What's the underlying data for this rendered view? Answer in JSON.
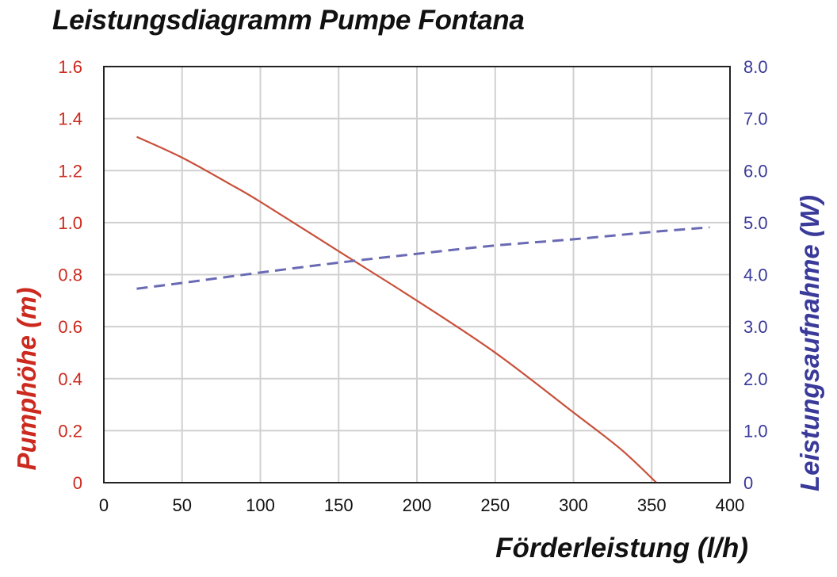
{
  "chart_data": {
    "type": "line",
    "title": "Leistungsdiagramm Pumpe Fontana",
    "xlabel": "Förderleistung (l/h)",
    "ylabel": "Pumphöhe (m)",
    "ylabel_right": "Leistungsaufnahme (W)",
    "xlim": [
      0,
      400
    ],
    "ylim": [
      0,
      1.6
    ],
    "ylim_right": [
      0,
      8.0
    ],
    "grid": true,
    "legend": null,
    "x_ticks": [
      "0",
      "50",
      "100",
      "150",
      "200",
      "250",
      "300",
      "350",
      "400"
    ],
    "y_ticks": [
      "0",
      "0.2",
      "0.4",
      "0.6",
      "0.8",
      "1.0",
      "1.2",
      "1.4",
      "1.6"
    ],
    "y_ticks_right": [
      "0",
      "1.0",
      "2.0",
      "3.0",
      "4.0",
      "5.0",
      "6.0",
      "7.0",
      "8.0"
    ],
    "colors": {
      "left_axis": "#cc2a1e",
      "right_axis": "#3a3a9a",
      "head_line": "#c8503a",
      "power_line": "#6a6ab4"
    },
    "series": [
      {
        "name": "Pumphöhe (m)",
        "axis": "left",
        "style": "solid",
        "x": [
          21,
          50,
          80,
          100,
          150,
          200,
          250,
          300,
          330,
          353
        ],
        "values": [
          1.33,
          1.25,
          1.15,
          1.08,
          0.89,
          0.7,
          0.5,
          0.27,
          0.13,
          0.0
        ]
      },
      {
        "name": "Leistungsaufnahme (W)",
        "axis": "right",
        "style": "dashed",
        "x": [
          21,
          50,
          100,
          150,
          200,
          250,
          300,
          350,
          387
        ],
        "values": [
          3.73,
          3.84,
          4.04,
          4.23,
          4.4,
          4.56,
          4.68,
          4.82,
          4.91
        ]
      }
    ]
  }
}
